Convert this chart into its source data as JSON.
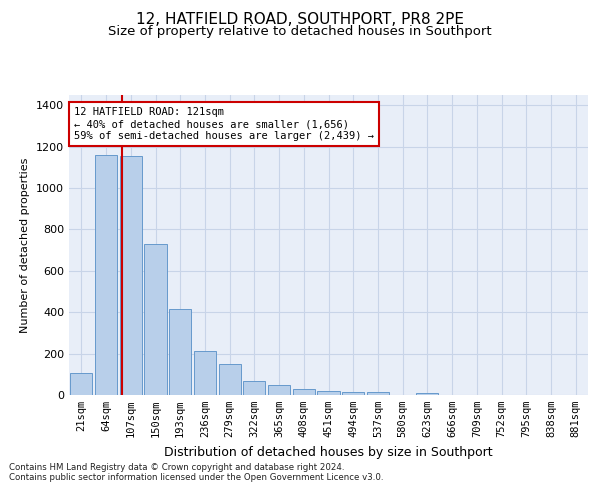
{
  "title": "12, HATFIELD ROAD, SOUTHPORT, PR8 2PE",
  "subtitle": "Size of property relative to detached houses in Southport",
  "xlabel": "Distribution of detached houses by size in Southport",
  "ylabel": "Number of detached properties",
  "categories": [
    "21sqm",
    "64sqm",
    "107sqm",
    "150sqm",
    "193sqm",
    "236sqm",
    "279sqm",
    "322sqm",
    "365sqm",
    "408sqm",
    "451sqm",
    "494sqm",
    "537sqm",
    "580sqm",
    "623sqm",
    "666sqm",
    "709sqm",
    "752sqm",
    "795sqm",
    "838sqm",
    "881sqm"
  ],
  "bar_heights": [
    105,
    1160,
    1155,
    730,
    415,
    215,
    150,
    70,
    47,
    30,
    20,
    15,
    15,
    0,
    12,
    0,
    0,
    0,
    0,
    0,
    0
  ],
  "property_line_x": 2.0,
  "annotation_text": "12 HATFIELD ROAD: 121sqm\n← 40% of detached houses are smaller (1,656)\n59% of semi-detached houses are larger (2,439) →",
  "bar_color": "#b8cfea",
  "bar_edge_color": "#6699cc",
  "line_color": "#cc0000",
  "annotation_box_color": "#cc0000",
  "plot_bg_color": "#e8eef8",
  "grid_color": "#c8d4e8",
  "footer_text": "Contains HM Land Registry data © Crown copyright and database right 2024.\nContains public sector information licensed under the Open Government Licence v3.0.",
  "ylim": [
    0,
    1450
  ],
  "yticks": [
    0,
    200,
    400,
    600,
    800,
    1000,
    1200,
    1400
  ],
  "title_fontsize": 11,
  "subtitle_fontsize": 9.5,
  "ylabel_fontsize": 8,
  "xlabel_fontsize": 9,
  "tick_fontsize": 7.5,
  "footer_fontsize": 6.2,
  "annot_fontsize": 7.5
}
